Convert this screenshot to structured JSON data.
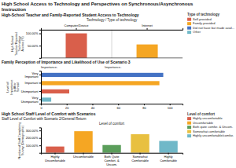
{
  "title": "High School Access to Technology and Perspectives on Synchronous/Asynchronous\nInstruction",
  "chart_data": [
    {
      "type": "bar",
      "title": "High-School Teacher and Family-Reported Student Access to Technology",
      "xlabel": "Technology / Type of technology",
      "ylabel": "High School\nTeacher/Reported\nTechnology\nAccess (%)",
      "categories": [
        "Computer/Device",
        "Internet"
      ],
      "series": [
        {
          "name": "Self-provided",
          "color": "#D95F4B",
          "values": [
            100,
            null
          ]
        },
        {
          "name": "Family-provided",
          "color": "#F5A623",
          "values": [
            null,
            55
          ]
        },
        {
          "name": "Did not have but made avail...",
          "color": "#4472C4",
          "values": [
            null,
            null
          ]
        },
        {
          "name": "Other",
          "color": "#70B8C8",
          "values": [
            null,
            null
          ]
        }
      ],
      "ylim": [
        0,
        115
      ],
      "yticks": [
        {
          "value": 50,
          "label": "50.00%"
        },
        {
          "value": 100,
          "label": "100.00%"
        }
      ],
      "legend": "right",
      "legend_title": "Type of technology"
    },
    {
      "type": "bar",
      "orientation": "horizontal",
      "title": "Family Perception of Importance and Likelihood of Use of Scenario 3",
      "annotations": [
        "Importance-",
        "Importance-"
      ],
      "ylabel": "Level of\nImportance\nto After\nSchool",
      "categories": [
        "Very\nImportant",
        "Important",
        "Unimportant",
        "Very\nUnimportant"
      ],
      "values": [
        95,
        92,
        22,
        8
      ],
      "colors": [
        "#4472C4",
        "#F5A623",
        "#D95F4B",
        "#70B8C8"
      ],
      "xlim": [
        0,
        110
      ],
      "xticks": [
        0,
        20,
        40,
        60,
        80,
        100
      ]
    },
    {
      "type": "bar",
      "title": "High School Staff Level of Comfort with Scenarios",
      "subtitle": "Staff Level of Comfort with Scenario 2/General Return",
      "xlabel": "Level of comfort",
      "ylabel": "Number of Staff Completing\nSurvey (Demographic)",
      "categories": [
        "Highly\nUncomfortable",
        "Uncomfortable",
        "Both Quite\nComfort. &\nUncom.",
        "Somewhat\nComfortable",
        "Highly\nComfortable"
      ],
      "series": [
        {
          "name": "Highly uncomfortable",
          "color": "#D95F4B",
          "values": [
            85,
            null,
            null,
            null,
            null
          ]
        },
        {
          "name": "Uncomfortable",
          "color": "#F5A623",
          "values": [
            null,
            290,
            null,
            null,
            null
          ]
        },
        {
          "name": "Both quite comfor. & Uncom.",
          "color": "#5B9E5B",
          "values": [
            null,
            null,
            105,
            null,
            null
          ]
        },
        {
          "name": "Somewhat comfortable",
          "color": "#E8C040",
          "values": [
            null,
            null,
            null,
            250,
            null
          ]
        },
        {
          "name": "Highly uncomfortable/comfor.",
          "color": "#70B8C8",
          "values": [
            null,
            null,
            null,
            null,
            160
          ]
        }
      ],
      "ylim": [
        0,
        340
      ],
      "yticks": [
        {
          "value": 100,
          "label": "100.00%"
        },
        {
          "value": 200,
          "label": "200.00%"
        },
        {
          "value": 300,
          "label": "300.00%"
        }
      ],
      "legend": "right",
      "legend_title": "Level of comfort"
    }
  ]
}
